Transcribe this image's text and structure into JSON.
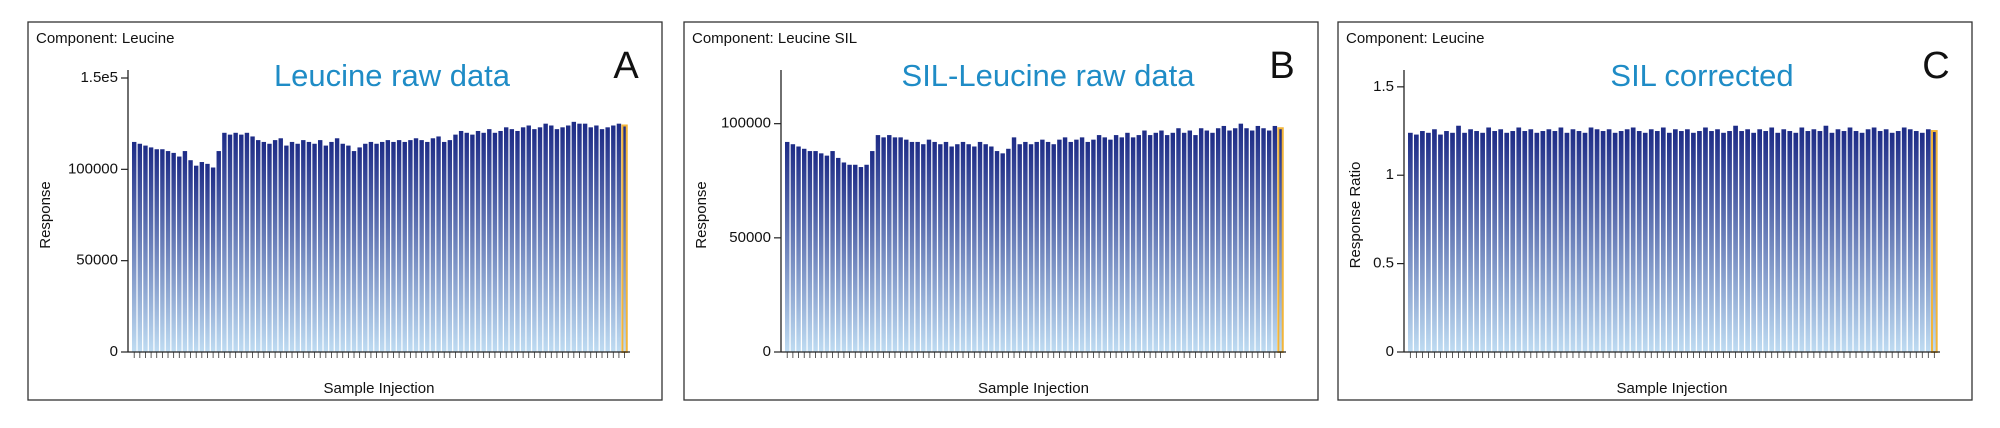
{
  "chart_data": [
    {
      "type": "bar",
      "title": "Component: Leucine",
      "annotation": "Leucine raw data",
      "panel_label": "A",
      "y_label": "Response",
      "x_label": "Sample Injection",
      "ylim": [
        0,
        150000
      ],
      "yticks": [
        0,
        50000,
        100000,
        {
          "value": 150000,
          "label": "1.5e5"
        }
      ],
      "color": "#1d2b86",
      "gradient_end_color": "#bfdcf2",
      "highlight_color": "#f2b53a",
      "values": [
        115000,
        114000,
        113000,
        112000,
        111000,
        111000,
        110000,
        109000,
        107000,
        110000,
        105000,
        102000,
        104000,
        103000,
        101000,
        110000,
        120000,
        119000,
        120000,
        119000,
        120000,
        118000,
        116000,
        115000,
        114000,
        116000,
        117000,
        113000,
        115000,
        114000,
        116000,
        115000,
        114000,
        116000,
        113000,
        115000,
        117000,
        114000,
        113000,
        110000,
        112000,
        114000,
        115000,
        114000,
        115000,
        116000,
        115000,
        116000,
        115000,
        116000,
        117000,
        116000,
        115000,
        117000,
        118000,
        115000,
        116000,
        119000,
        121000,
        120000,
        119000,
        121000,
        120000,
        122000,
        120000,
        121000,
        123000,
        122000,
        121000,
        123000,
        124000,
        122000,
        123000,
        125000,
        124000,
        122000,
        123000,
        124000,
        126000,
        125000,
        125000,
        123000,
        124000,
        122000,
        123000,
        124000,
        125000,
        124000
      ]
    },
    {
      "type": "bar",
      "title": "Component: Leucine SIL",
      "annotation": "SIL-Leucine raw data",
      "panel_label": "B",
      "y_label": "Response",
      "x_label": "Sample Injection",
      "ylim": [
        0,
        120000
      ],
      "yticks": [
        0,
        50000,
        100000
      ],
      "color": "#1d2b86",
      "gradient_end_color": "#bfdcf2",
      "highlight_color": "#f2b53a",
      "values": [
        92000,
        91000,
        90000,
        89000,
        88000,
        88000,
        87000,
        86000,
        88000,
        85000,
        83000,
        82000,
        82000,
        81000,
        82000,
        88000,
        95000,
        94000,
        95000,
        94000,
        94000,
        93000,
        92000,
        92000,
        91000,
        93000,
        92000,
        91000,
        92000,
        90000,
        91000,
        92000,
        91000,
        90000,
        92000,
        91000,
        90000,
        88000,
        87000,
        89000,
        94000,
        91000,
        92000,
        91000,
        92000,
        93000,
        92000,
        91000,
        93000,
        94000,
        92000,
        93000,
        94000,
        92000,
        93000,
        95000,
        94000,
        93000,
        95000,
        94000,
        96000,
        94000,
        95000,
        97000,
        95000,
        96000,
        97000,
        95000,
        96000,
        98000,
        96000,
        97000,
        95000,
        98000,
        97000,
        96000,
        98000,
        99000,
        97000,
        98000,
        100000,
        98000,
        97000,
        99000,
        98000,
        97000,
        99000,
        98000
      ]
    },
    {
      "type": "bar",
      "title": "Component: Leucine",
      "annotation": "SIL corrected",
      "panel_label": "C",
      "y_label": "Response Ratio",
      "x_label": "Sample Injection",
      "ylim": [
        0,
        1.55
      ],
      "yticks": [
        0,
        0.5,
        1,
        1.5
      ],
      "color": "#1d2b86",
      "gradient_end_color": "#bfdcf2",
      "highlight_color": "#f2b53a",
      "values": [
        1.24,
        1.23,
        1.25,
        1.24,
        1.26,
        1.23,
        1.25,
        1.24,
        1.28,
        1.24,
        1.26,
        1.25,
        1.24,
        1.27,
        1.25,
        1.26,
        1.24,
        1.25,
        1.27,
        1.25,
        1.26,
        1.24,
        1.25,
        1.26,
        1.25,
        1.27,
        1.24,
        1.26,
        1.25,
        1.24,
        1.27,
        1.26,
        1.25,
        1.26,
        1.24,
        1.25,
        1.26,
        1.27,
        1.25,
        1.24,
        1.26,
        1.25,
        1.27,
        1.24,
        1.26,
        1.25,
        1.26,
        1.24,
        1.25,
        1.27,
        1.25,
        1.26,
        1.24,
        1.25,
        1.28,
        1.25,
        1.26,
        1.24,
        1.26,
        1.25,
        1.27,
        1.24,
        1.26,
        1.25,
        1.24,
        1.27,
        1.25,
        1.26,
        1.25,
        1.28,
        1.24,
        1.26,
        1.25,
        1.27,
        1.25,
        1.24,
        1.26,
        1.27,
        1.25,
        1.26,
        1.24,
        1.25,
        1.27,
        1.26,
        1.25,
        1.24,
        1.26,
        1.25
      ]
    }
  ]
}
